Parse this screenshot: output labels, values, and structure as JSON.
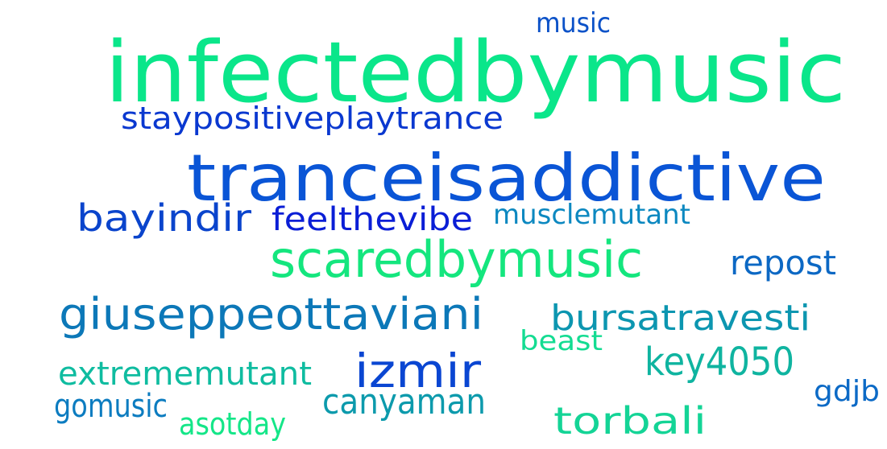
{
  "colors": {
    "background": "#ffffff",
    "green": "#0ae68a",
    "light_green": "#14e08e",
    "teal": "#0fb3a0",
    "cyan_blue": "#0c8ac0",
    "blue": "#0a55d6",
    "deep_blue": "#0a2fd8",
    "mid_blue": "#0c6ec8"
  },
  "words": [
    {
      "text": "infectedbymusic",
      "color": "#0ae68a"
    },
    {
      "text": "tranceisaddictive",
      "color": "#0a55d6"
    },
    {
      "text": "scaredbymusic",
      "color": "#14e67e"
    },
    {
      "text": "staypositiveplaytrance",
      "color": "#0a38d0"
    },
    {
      "text": "music",
      "color": "#0c52c8"
    },
    {
      "text": "bayindir",
      "color": "#0a44cc"
    },
    {
      "text": "feelthevibe",
      "color": "#0a1ed6"
    },
    {
      "text": "musclemutant",
      "color": "#0c88c0"
    },
    {
      "text": "repost",
      "color": "#0c68c4"
    },
    {
      "text": "giuseppeottaviani",
      "color": "#0c78b8"
    },
    {
      "text": "bursatravesti",
      "color": "#0c96b0"
    },
    {
      "text": "beast",
      "color": "#14dc92"
    },
    {
      "text": "key4050",
      "color": "#0fb4a0"
    },
    {
      "text": "izmir",
      "color": "#0a46d2"
    },
    {
      "text": "extrememutant",
      "color": "#0fbca0"
    },
    {
      "text": "canyaman",
      "color": "#0c9aac"
    },
    {
      "text": "torbali",
      "color": "#14d496"
    },
    {
      "text": "gdjb",
      "color": "#0c6ac6"
    },
    {
      "text": "gomusic",
      "color": "#0c7cc0"
    },
    {
      "text": "asotday",
      "color": "#14e688"
    }
  ]
}
